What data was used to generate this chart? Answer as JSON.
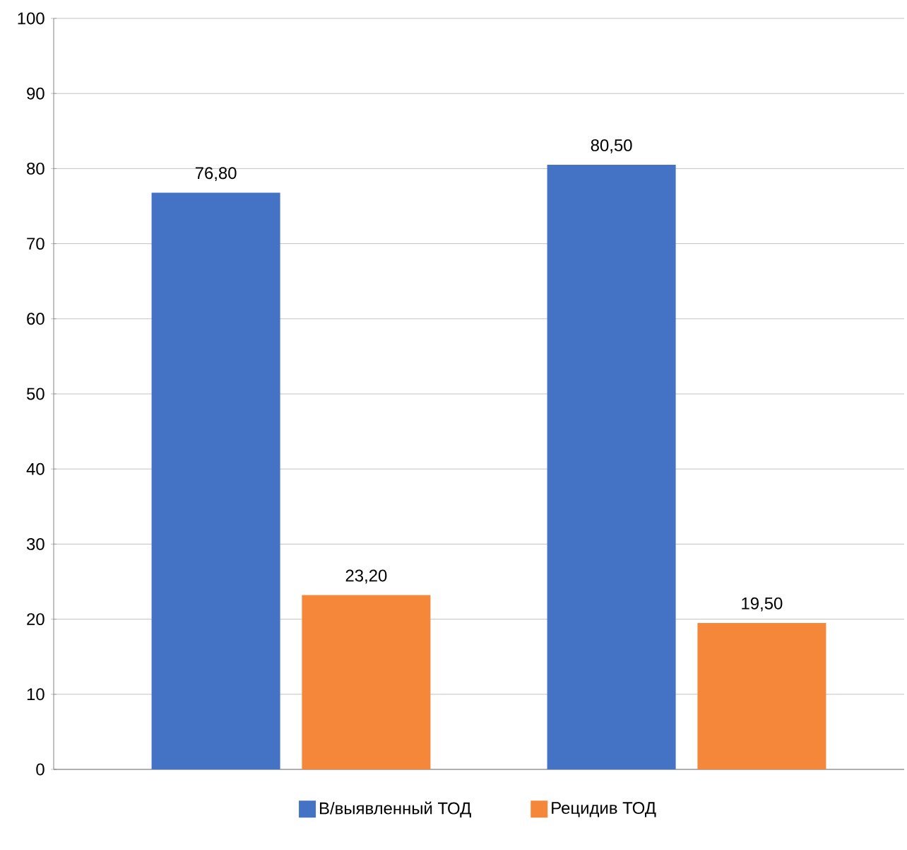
{
  "chart_data": {
    "type": "bar",
    "categories": [
      null,
      null
    ],
    "series": [
      {
        "name": "В/выявленный ТОД",
        "color": "#4472c4",
        "values": [
          76.8,
          80.5
        ],
        "value_labels": [
          "76,80",
          "80,50"
        ]
      },
      {
        "name": "Рецидив ТОД",
        "color": "#f5873b",
        "values": [
          23.2,
          19.5
        ],
        "value_labels": [
          "23,20",
          "19,50"
        ]
      }
    ],
    "ylim": [
      0,
      100
    ],
    "yticks": [
      0,
      10,
      20,
      30,
      40,
      50,
      60,
      70,
      80,
      90,
      100
    ],
    "grid": "y",
    "legend": "bottom"
  }
}
